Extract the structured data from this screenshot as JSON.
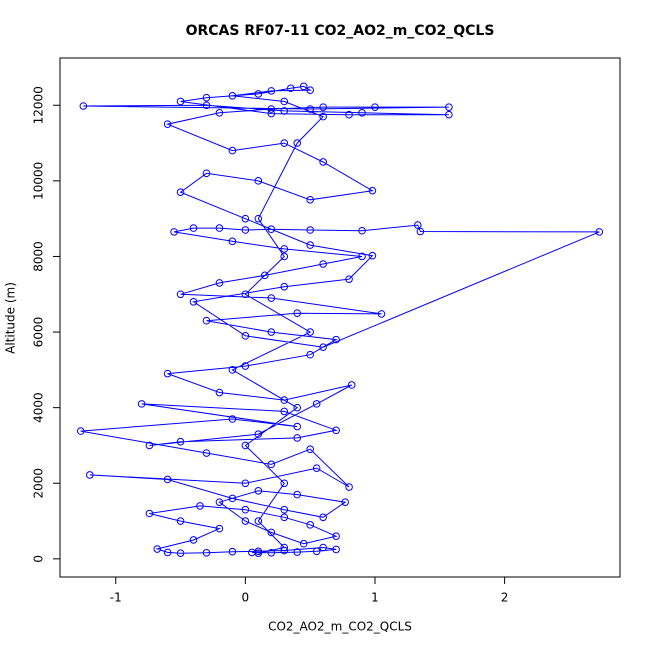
{
  "chart_data": {
    "type": "line",
    "title": "ORCAS RF07-11 CO2_AO2_m_CO2_QCLS",
    "x_label": "CO2_AO2_m_CO2_QCLS",
    "y_label": "Altitude (m)",
    "color": "#0000ff",
    "markers": true,
    "x": [
      0.05,
      0.2,
      0.4,
      0.55,
      0.7,
      0.6,
      0.3,
      0.1,
      -0.1,
      -0.3,
      -0.5,
      -0.6,
      -0.68,
      -0.4,
      -0.2,
      -0.5,
      -0.74,
      -0.35,
      0.0,
      0.3,
      0.5,
      0.7,
      0.45,
      0.2,
      0.0,
      -0.2,
      0.1,
      0.4,
      0.77,
      0.6,
      0.3,
      -0.1,
      -0.6,
      -1.2,
      0.0,
      0.55,
      0.8,
      0.5,
      0.2,
      -0.3,
      -1.27,
      -0.1,
      0.4,
      -0.8,
      0.3,
      0.7,
      0.4,
      -0.5,
      -0.74,
      0.1,
      0.55,
      0.82,
      0.3,
      -0.2,
      -0.6,
      0.0,
      0.5,
      0.7,
      0.2,
      -0.3,
      0.4,
      1.05,
      0.2,
      -0.5,
      -0.2,
      0.15,
      0.6,
      0.9,
      0.3,
      -0.1,
      -0.55,
      -0.4,
      -0.2,
      0.0,
      0.2,
      0.5,
      0.9,
      1.33,
      1.35,
      2.73,
      0.6,
      0.0,
      -0.4,
      0.3,
      0.8,
      0.98,
      0.5,
      0.0,
      -0.5,
      -0.3,
      0.1,
      0.5,
      0.98,
      0.6,
      0.3,
      -0.1,
      -0.6,
      -0.2,
      0.2,
      0.6,
      1.0,
      1.57,
      0.5,
      -1.25,
      -0.3,
      0.3,
      0.9,
      1.57,
      0.8,
      0.2,
      -0.5,
      -0.3,
      0.1,
      0.35,
      0.45,
      0.5,
      0.2,
      -0.1,
      0.3,
      0.6,
      0.4,
      0.1,
      0.3,
      0.0,
      0.5,
      -0.1,
      0.4,
      0.0,
      0.3,
      0.1,
      0.3,
      0.1
    ],
    "values": [
      170,
      160,
      180,
      200,
      250,
      300,
      220,
      200,
      190,
      160,
      150,
      170,
      260,
      500,
      800,
      1000,
      1200,
      1400,
      1300,
      1100,
      900,
      600,
      400,
      700,
      1000,
      1500,
      1800,
      1700,
      1500,
      1100,
      1300,
      1600,
      2100,
      2220,
      2000,
      2400,
      1900,
      2900,
      2500,
      2800,
      3380,
      3700,
      3500,
      4100,
      3900,
      3400,
      3200,
      3100,
      3000,
      3300,
      4100,
      4600,
      4200,
      4400,
      4900,
      5100,
      5400,
      5800,
      6000,
      6300,
      6500,
      6480,
      6900,
      7000,
      7300,
      7500,
      7800,
      8000,
      8200,
      8400,
      8650,
      8750,
      8750,
      8700,
      8720,
      8700,
      8680,
      8830,
      8660,
      8650,
      5600,
      5900,
      6800,
      7200,
      7400,
      8020,
      8300,
      9000,
      9700,
      10200,
      10000,
      9500,
      9740,
      10500,
      11000,
      10800,
      11500,
      11800,
      11900,
      11950,
      11950,
      11950,
      11900,
      11980,
      12000,
      11850,
      11800,
      11750,
      11750,
      11780,
      12100,
      12200,
      12300,
      12450,
      12500,
      12400,
      12380,
      12250,
      12100,
      11700,
      11000,
      9000,
      8000,
      7000,
      6000,
      5000,
      4000,
      3000,
      2000,
      1000,
      300,
      150
    ],
    "xlim": [
      -1.43,
      2.89
    ],
    "ylim": [
      -480,
      13250
    ],
    "xticks": [
      -1,
      0,
      1,
      2
    ],
    "yticks": [
      0,
      2000,
      4000,
      6000,
      8000,
      10000,
      12000
    ]
  }
}
